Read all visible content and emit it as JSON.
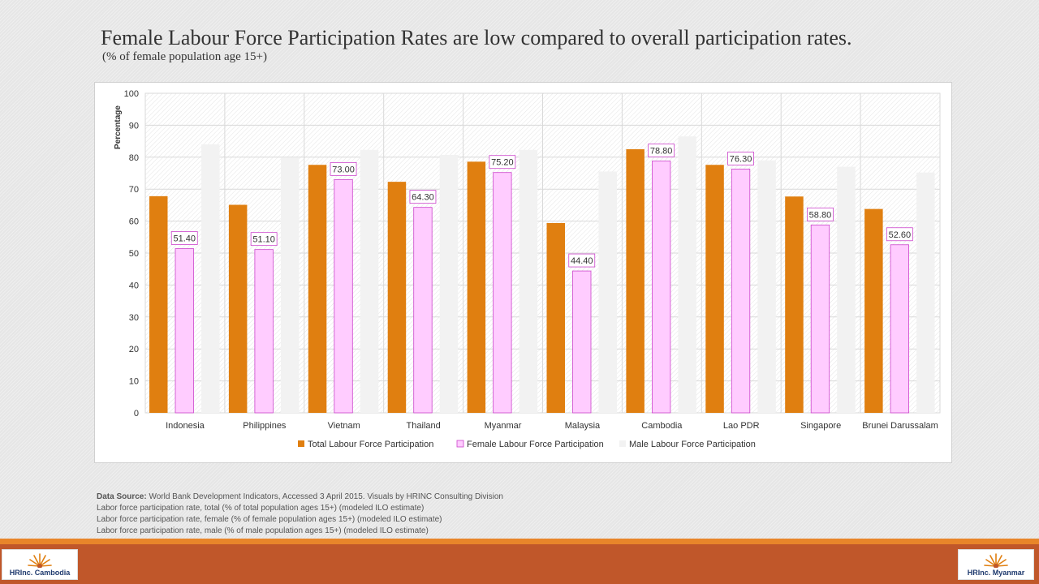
{
  "slide": {
    "title": "Female Labour Force Participation Rates are low compared to overall participation rates.",
    "subtitle": "(% of female population  age 15+)"
  },
  "colors": {
    "total": "#e07f10",
    "female": "#ffccff",
    "female_border": "#cc44cc",
    "male": "#f2f2f2"
  },
  "chart_data": {
    "type": "bar",
    "ylabel": "Percentage",
    "ylim": [
      0,
      100
    ],
    "yticks": [
      0,
      10,
      20,
      30,
      40,
      50,
      60,
      70,
      80,
      90,
      100
    ],
    "categories": [
      "Indonesia",
      "Philippines",
      "Vietnam",
      "Thailand",
      "Myanmar",
      "Malaysia",
      "Cambodia",
      "Lao PDR",
      "Singapore",
      "Brunei Darussalam"
    ],
    "series": [
      {
        "name": "Total Labour Force Participation",
        "values": [
          67.8,
          65.1,
          77.6,
          72.3,
          78.6,
          59.4,
          82.5,
          77.6,
          67.7,
          63.8
        ]
      },
      {
        "name": "Female Labour Force Participation",
        "values": [
          51.4,
          51.1,
          73.0,
          64.3,
          75.2,
          44.4,
          78.8,
          76.3,
          58.8,
          52.6
        ],
        "labels": [
          "51.40",
          "51.10",
          "73.00",
          "64.30",
          "75.20",
          "44.40",
          "78.80",
          "76.30",
          "58.80",
          "52.60"
        ]
      },
      {
        "name": "Male Labour Force Participation",
        "values": [
          84.0,
          79.9,
          82.3,
          80.7,
          82.3,
          75.5,
          86.5,
          79.0,
          77.0,
          75.2
        ]
      }
    ],
    "legend_position": "bottom",
    "grid": true
  },
  "source": {
    "label": "Data Source:",
    "text": " World Bank Development Indicators, Accessed 3 April 2015. Visuals by HRINC Consulting Division",
    "lines": [
      "Labor force participation rate, total (% of total population ages 15+) (modeled ILO estimate)",
      "Labor force participation rate, female (% of female population ages 15+) (modeled ILO estimate)",
      "Labor force participation rate, male (% of male population ages 15+) (modeled ILO estimate)"
    ]
  },
  "logos": {
    "left": "HRInc. Cambodia",
    "right": "HRInc. Myanmar"
  }
}
